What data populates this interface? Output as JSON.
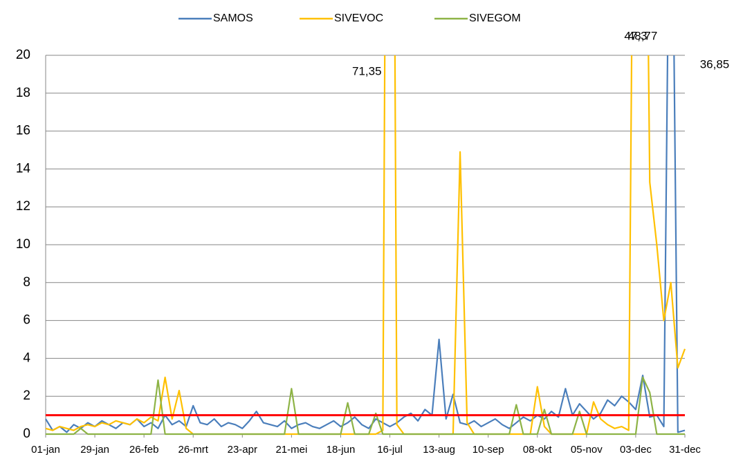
{
  "chart_data": {
    "type": "line",
    "x": [
      1,
      5,
      9,
      13,
      17,
      21,
      25,
      29,
      33,
      37,
      41,
      45,
      49,
      53,
      57,
      61,
      65,
      69,
      73,
      77,
      81,
      85,
      89,
      93,
      97,
      101,
      105,
      109,
      113,
      117,
      121,
      125,
      129,
      133,
      137,
      141,
      145,
      149,
      153,
      157,
      161,
      165,
      169,
      173,
      177,
      181,
      185,
      189,
      193,
      197,
      201,
      205,
      209,
      213,
      217,
      221,
      225,
      229,
      233,
      237,
      241,
      245,
      249,
      253,
      257,
      261,
      265,
      269,
      273,
      277,
      281,
      285,
      289,
      293,
      297,
      301,
      305,
      309,
      313,
      317,
      321,
      325,
      329,
      333,
      337,
      341,
      345,
      349,
      353,
      357,
      361,
      365
    ],
    "xlim": [
      1,
      365
    ],
    "xticks": [
      {
        "value": 1,
        "label": "01-jan"
      },
      {
        "value": 29,
        "label": "29-jan"
      },
      {
        "value": 57,
        "label": "26-feb"
      },
      {
        "value": 85,
        "label": "26-mrt"
      },
      {
        "value": 113,
        "label": "23-apr"
      },
      {
        "value": 141,
        "label": "21-mei"
      },
      {
        "value": 169,
        "label": "18-jun"
      },
      {
        "value": 197,
        "label": "16-jul"
      },
      {
        "value": 225,
        "label": "13-aug"
      },
      {
        "value": 253,
        "label": "10-sep"
      },
      {
        "value": 281,
        "label": "08-okt"
      },
      {
        "value": 309,
        "label": "05-nov"
      },
      {
        "value": 337,
        "label": "03-dec"
      },
      {
        "value": 365,
        "label": "31-dec"
      }
    ],
    "ylim": [
      0,
      20
    ],
    "yticks": [
      0,
      2,
      4,
      6,
      8,
      10,
      12,
      14,
      16,
      18,
      20
    ],
    "grid": true,
    "legend": "top",
    "reference_line": {
      "value": 1,
      "color": "#ff0000"
    },
    "series": [
      {
        "name": "SAMOS",
        "color": "#4a7ebb",
        "values": [
          0.8,
          0.2,
          0.4,
          0.1,
          0.5,
          0.3,
          0.6,
          0.4,
          0.7,
          0.5,
          0.3,
          0.6,
          0.5,
          0.8,
          0.4,
          0.6,
          0.3,
          1.0,
          0.5,
          0.7,
          0.4,
          1.5,
          0.6,
          0.5,
          0.8,
          0.4,
          0.6,
          0.5,
          0.3,
          0.7,
          1.2,
          0.6,
          0.5,
          0.4,
          0.7,
          0.3,
          0.5,
          0.6,
          0.4,
          0.3,
          0.5,
          0.7,
          0.4,
          0.6,
          0.9,
          0.5,
          0.3,
          0.8,
          0.6,
          0.4,
          0.6,
          0.9,
          1.1,
          0.7,
          1.3,
          1.0,
          5.0,
          0.8,
          2.1,
          0.6,
          0.5,
          0.7,
          0.4,
          0.6,
          0.8,
          0.5,
          0.3,
          0.6,
          0.9,
          0.7,
          1.0,
          0.8,
          1.2,
          0.9,
          2.4,
          1.0,
          1.6,
          1.2,
          0.8,
          1.1,
          1.8,
          1.5,
          2.0,
          1.7,
          1.3,
          3.1,
          0.9,
          1.0,
          0.4,
          36.85,
          0.1,
          0.2
        ],
        "value_labels": [
          null,
          null,
          null,
          null,
          null,
          null,
          null,
          null,
          null,
          null,
          null,
          null,
          null,
          null,
          null,
          null,
          null,
          null,
          null,
          null,
          null,
          null,
          null,
          null,
          null,
          null,
          null,
          null,
          null,
          null,
          null,
          null,
          null,
          null,
          null,
          null,
          null,
          null,
          null,
          null,
          null,
          null,
          null,
          null,
          null,
          null,
          null,
          null,
          null,
          null,
          null,
          null,
          null,
          null,
          null,
          null,
          null,
          null,
          null,
          null,
          null,
          null,
          null,
          null,
          null,
          null,
          null,
          null,
          null,
          null,
          null,
          null,
          null,
          null,
          null,
          null,
          null,
          null,
          null,
          null,
          null,
          null,
          null,
          null,
          null,
          null,
          null,
          null,
          null,
          "36,85",
          null,
          null
        ]
      },
      {
        "name": "SIVEVOC",
        "color": "#ffc000",
        "values": [
          0.3,
          0.2,
          0.4,
          0.3,
          0.2,
          0.4,
          0.5,
          0.4,
          0.6,
          0.5,
          0.7,
          0.6,
          0.5,
          0.8,
          0.6,
          0.9,
          0.7,
          3.0,
          0.8,
          2.3,
          0.3,
          0,
          0,
          0,
          0,
          0,
          0,
          0,
          0,
          0,
          0,
          0,
          0,
          0,
          0,
          0,
          0,
          0,
          0,
          0,
          0,
          0,
          0,
          0,
          0,
          0,
          0,
          0,
          0.2,
          71.35,
          0.5,
          0,
          0,
          0,
          0,
          0,
          0,
          0,
          0,
          14.9,
          0.6,
          0,
          0,
          0,
          0,
          0,
          0,
          0,
          0,
          0,
          2.5,
          0.4,
          0,
          0,
          0,
          0,
          0,
          0,
          1.7,
          0.8,
          0.5,
          0.3,
          0.4,
          0.2,
          47.3,
          48.77,
          13.3,
          10.0,
          6.0,
          8.0,
          3.5,
          4.5
        ],
        "value_labels": [
          null,
          null,
          null,
          null,
          null,
          null,
          null,
          null,
          null,
          null,
          null,
          null,
          null,
          null,
          null,
          null,
          null,
          null,
          null,
          null,
          null,
          null,
          null,
          null,
          null,
          null,
          null,
          null,
          null,
          null,
          null,
          null,
          null,
          null,
          null,
          null,
          null,
          null,
          null,
          null,
          null,
          null,
          null,
          null,
          null,
          null,
          null,
          null,
          null,
          "71,35",
          null,
          null,
          null,
          null,
          null,
          null,
          null,
          null,
          null,
          null,
          null,
          null,
          null,
          null,
          null,
          null,
          null,
          null,
          null,
          null,
          null,
          null,
          null,
          null,
          null,
          null,
          null,
          null,
          null,
          null,
          null,
          null,
          null,
          null,
          "47,3",
          "48,77",
          null,
          null,
          null,
          null,
          null,
          null
        ]
      },
      {
        "name": "SIVEGOM",
        "color": "#8db345",
        "values": [
          0,
          0,
          0,
          0,
          0,
          0.3,
          0,
          0,
          0,
          0,
          0,
          0,
          0,
          0,
          0,
          0,
          2.85,
          0,
          0,
          0,
          0,
          0,
          0,
          0,
          0,
          0,
          0,
          0,
          0,
          0,
          0,
          0,
          0,
          0,
          0,
          2.4,
          0,
          0,
          0,
          0,
          0,
          0,
          0,
          1.65,
          0,
          0,
          0,
          1.1,
          0,
          0,
          0,
          0,
          0,
          0,
          0,
          0,
          0,
          0,
          0,
          0,
          0,
          0,
          0,
          0,
          0,
          0,
          0,
          1.55,
          0,
          0,
          0,
          1.3,
          0,
          0,
          0,
          0,
          1.2,
          0,
          0,
          0,
          0,
          0,
          0,
          0,
          0,
          3.0,
          2.2,
          0,
          0,
          0,
          0,
          0
        ]
      }
    ]
  }
}
